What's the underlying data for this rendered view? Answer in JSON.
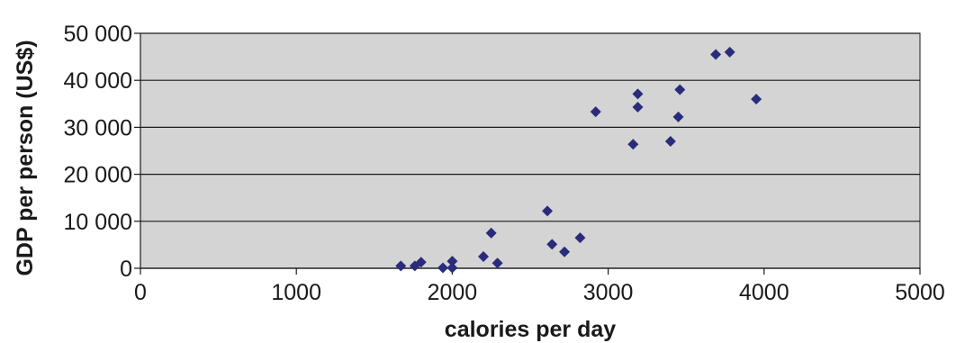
{
  "chart_data": {
    "type": "scatter",
    "xlabel": "calories per day",
    "ylabel": "GDP per person (US$)",
    "xlim": [
      0,
      5000
    ],
    "ylim": [
      0,
      50000
    ],
    "x_ticks": [
      0,
      1000,
      2000,
      3000,
      4000,
      5000
    ],
    "x_tick_labels": [
      "0",
      "1000",
      "2000",
      "3000",
      "4000",
      "5000"
    ],
    "y_ticks": [
      0,
      10000,
      20000,
      30000,
      40000,
      50000
    ],
    "y_tick_labels": [
      "0",
      "10 000",
      "20 000",
      "30 000",
      "40 000",
      "50 000"
    ],
    "grid": "horizontal",
    "legend": "none",
    "colors": {
      "plot_background": "#d4d4d4",
      "marker": "#2b2b7c",
      "gridline": "#1a1a1a"
    },
    "marker": "diamond",
    "points": [
      {
        "x": 1670,
        "y": 500
      },
      {
        "x": 1760,
        "y": 500
      },
      {
        "x": 1800,
        "y": 1300
      },
      {
        "x": 1940,
        "y": 100
      },
      {
        "x": 2000,
        "y": 100
      },
      {
        "x": 2000,
        "y": 1500
      },
      {
        "x": 2200,
        "y": 2500
      },
      {
        "x": 2250,
        "y": 7500
      },
      {
        "x": 2290,
        "y": 1100
      },
      {
        "x": 2610,
        "y": 12200
      },
      {
        "x": 2640,
        "y": 5100
      },
      {
        "x": 2720,
        "y": 3500
      },
      {
        "x": 2820,
        "y": 6500
      },
      {
        "x": 2920,
        "y": 33300
      },
      {
        "x": 3160,
        "y": 26400
      },
      {
        "x": 3190,
        "y": 34300
      },
      {
        "x": 3190,
        "y": 37100
      },
      {
        "x": 3400,
        "y": 27000
      },
      {
        "x": 3450,
        "y": 32200
      },
      {
        "x": 3460,
        "y": 38000
      },
      {
        "x": 3690,
        "y": 45500
      },
      {
        "x": 3780,
        "y": 46000
      },
      {
        "x": 3950,
        "y": 36000
      }
    ]
  }
}
